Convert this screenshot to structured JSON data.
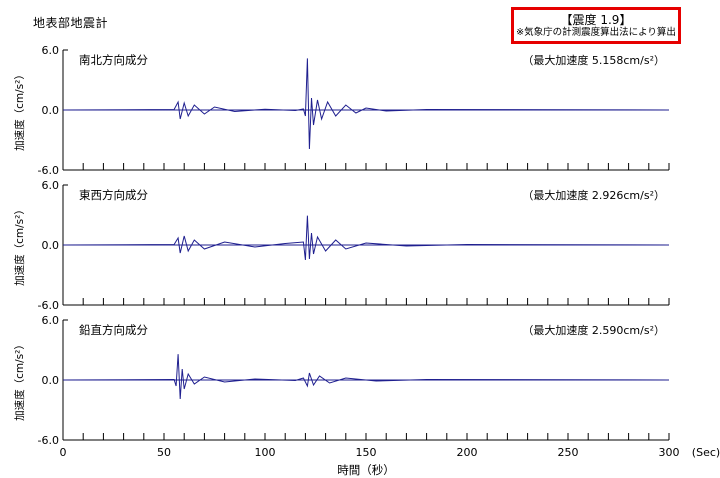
{
  "header": {
    "title": "地表部地震計",
    "intensity_label": "【震度 1.9】",
    "intensity_note": "※気象庁の計測震度算出法により算出"
  },
  "chart_data": [
    {
      "type": "line",
      "title": "南北方向成分",
      "peak_label": "（最大加速度 5.158cm/s²）",
      "peak_value": 5.158,
      "ylabel": "加速度（cm/s²）",
      "ylim": [
        -6.0,
        6.0
      ],
      "yticks": [
        "6.0",
        "0.0",
        "-6.0"
      ],
      "xlim": [
        0,
        300
      ],
      "grid": true,
      "series": [
        {
          "values": [
            [
              0,
              0
            ],
            [
              55,
              0.05
            ],
            [
              57,
              0.8
            ],
            [
              58,
              -0.9
            ],
            [
              60,
              0.7
            ],
            [
              62,
              -0.6
            ],
            [
              65,
              0.5
            ],
            [
              70,
              -0.4
            ],
            [
              75,
              0.3
            ],
            [
              85,
              -0.15
            ],
            [
              100,
              0.08
            ],
            [
              115,
              -0.05
            ],
            [
              119,
              0.1
            ],
            [
              120,
              -0.6
            ],
            [
              121,
              5.16
            ],
            [
              122,
              -3.9
            ],
            [
              123,
              1.2
            ],
            [
              124,
              -1.5
            ],
            [
              126,
              1.0
            ],
            [
              128,
              -0.9
            ],
            [
              131,
              0.8
            ],
            [
              135,
              -0.6
            ],
            [
              140,
              0.5
            ],
            [
              145,
              -0.3
            ],
            [
              150,
              0.2
            ],
            [
              160,
              -0.1
            ],
            [
              180,
              0.05
            ],
            [
              300,
              0
            ]
          ]
        }
      ]
    },
    {
      "type": "line",
      "title": "東西方向成分",
      "peak_label": "（最大加速度 2.926cm/s²）",
      "peak_value": 2.926,
      "ylabel": "加速度（cm/s²）",
      "ylim": [
        -6.0,
        6.0
      ],
      "yticks": [
        "6.0",
        "0.0",
        "-6.0"
      ],
      "xlim": [
        0,
        300
      ],
      "grid": true,
      "series": [
        {
          "values": [
            [
              0,
              0
            ],
            [
              55,
              0.05
            ],
            [
              57,
              0.7
            ],
            [
              58,
              -0.8
            ],
            [
              60,
              0.9
            ],
            [
              62,
              -0.6
            ],
            [
              65,
              0.5
            ],
            [
              70,
              -0.4
            ],
            [
              80,
              0.3
            ],
            [
              95,
              -0.2
            ],
            [
              110,
              0.15
            ],
            [
              119,
              0.3
            ],
            [
              120,
              -1.5
            ],
            [
              121,
              2.93
            ],
            [
              122,
              -1.4
            ],
            [
              123,
              1.2
            ],
            [
              124,
              -0.9
            ],
            [
              126,
              0.8
            ],
            [
              130,
              -0.6
            ],
            [
              135,
              0.5
            ],
            [
              140,
              -0.4
            ],
            [
              150,
              0.2
            ],
            [
              170,
              -0.1
            ],
            [
              200,
              0.05
            ],
            [
              300,
              0
            ]
          ]
        }
      ]
    },
    {
      "type": "line",
      "title": "鉛直方向成分",
      "peak_label": "（最大加速度 2.590cm/s²）",
      "peak_value": 2.59,
      "ylabel": "加速度（cm/s²）",
      "ylim": [
        -6.0,
        6.0
      ],
      "yticks": [
        "6.0",
        "0.0",
        "-6.0"
      ],
      "xlim": [
        0,
        300
      ],
      "grid": true,
      "series": [
        {
          "values": [
            [
              0,
              0
            ],
            [
              55,
              0.05
            ],
            [
              56,
              -0.6
            ],
            [
              57,
              2.59
            ],
            [
              58,
              -1.9
            ],
            [
              59,
              1.1
            ],
            [
              60,
              -0.9
            ],
            [
              62,
              0.6
            ],
            [
              65,
              -0.4
            ],
            [
              70,
              0.3
            ],
            [
              80,
              -0.2
            ],
            [
              95,
              0.1
            ],
            [
              115,
              -0.05
            ],
            [
              119,
              0.2
            ],
            [
              121,
              -0.6
            ],
            [
              122,
              0.7
            ],
            [
              124,
              -0.5
            ],
            [
              127,
              0.4
            ],
            [
              132,
              -0.3
            ],
            [
              140,
              0.2
            ],
            [
              155,
              -0.1
            ],
            [
              180,
              0.05
            ],
            [
              300,
              0
            ]
          ]
        }
      ]
    }
  ],
  "xaxis": {
    "label": "時間（秒）",
    "unit": "(Sec)",
    "ticks": [
      "0",
      "50",
      "100",
      "150",
      "200",
      "250",
      "300"
    ]
  },
  "colors": {
    "trace": "#1f1f8f",
    "badge_border": "#e60000",
    "grid": "#000000"
  }
}
